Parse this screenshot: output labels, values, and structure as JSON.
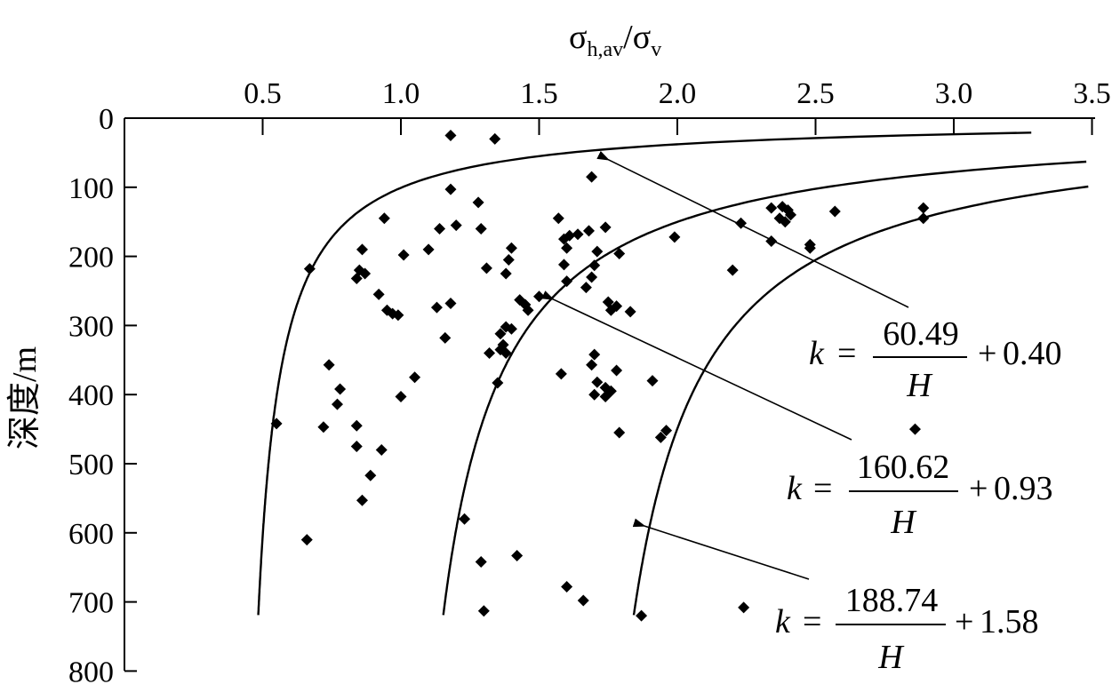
{
  "chart_data": {
    "type": "scatter",
    "xlabel": {
      "main": "σ",
      "sub1": "h,av",
      "slash": "/",
      "main2": "σ",
      "sub2": "v"
    },
    "ylabel": "深度/m",
    "xlim": [
      0,
      3.5
    ],
    "ylim": [
      0,
      800
    ],
    "x_ticks": [
      "0.5",
      "1.0",
      "1.5",
      "2.0",
      "2.5",
      "3.0",
      "3.5"
    ],
    "y_ticks": [
      "0",
      "100",
      "200",
      "300",
      "400",
      "500",
      "600",
      "700",
      "800"
    ],
    "x_axis_position": "top",
    "y_axis_inverted": true,
    "grid": false,
    "marker": "diamond",
    "color": "#000000",
    "points": [
      [
        1.18,
        25
      ],
      [
        1.34,
        30
      ],
      [
        1.69,
        85
      ],
      [
        1.18,
        103
      ],
      [
        1.28,
        122
      ],
      [
        0.94,
        145
      ],
      [
        1.57,
        145
      ],
      [
        1.2,
        155
      ],
      [
        1.14,
        160
      ],
      [
        1.29,
        160
      ],
      [
        1.74,
        158
      ],
      [
        1.68,
        163
      ],
      [
        1.64,
        168
      ],
      [
        1.61,
        170
      ],
      [
        1.59,
        175
      ],
      [
        1.1,
        190
      ],
      [
        1.01,
        198
      ],
      [
        0.86,
        190
      ],
      [
        1.4,
        188
      ],
      [
        1.6,
        188
      ],
      [
        1.71,
        193
      ],
      [
        1.79,
        196
      ],
      [
        1.39,
        205
      ],
      [
        1.59,
        212
      ],
      [
        1.7,
        213
      ],
      [
        1.31,
        217
      ],
      [
        0.67,
        218
      ],
      [
        0.85,
        220
      ],
      [
        0.87,
        225
      ],
      [
        0.84,
        232
      ],
      [
        1.38,
        225
      ],
      [
        1.69,
        230
      ],
      [
        1.6,
        236
      ],
      [
        1.67,
        245
      ],
      [
        0.92,
        255
      ],
      [
        1.5,
        258
      ],
      [
        1.43,
        263
      ],
      [
        1.45,
        270
      ],
      [
        1.18,
        268
      ],
      [
        1.13,
        274
      ],
      [
        1.46,
        278
      ],
      [
        1.75,
        266
      ],
      [
        1.78,
        272
      ],
      [
        1.76,
        278
      ],
      [
        1.83,
        280
      ],
      [
        0.95,
        278
      ],
      [
        0.97,
        283
      ],
      [
        0.99,
        285
      ],
      [
        1.38,
        302
      ],
      [
        1.4,
        305
      ],
      [
        1.36,
        312
      ],
      [
        1.16,
        318
      ],
      [
        1.37,
        328
      ],
      [
        1.36,
        335
      ],
      [
        1.32,
        340
      ],
      [
        1.38,
        340
      ],
      [
        1.7,
        342
      ],
      [
        1.69,
        357
      ],
      [
        0.74,
        357
      ],
      [
        1.78,
        365
      ],
      [
        1.58,
        370
      ],
      [
        1.05,
        375
      ],
      [
        1.71,
        382
      ],
      [
        1.35,
        383
      ],
      [
        1.91,
        380
      ],
      [
        1.74,
        390
      ],
      [
        1.76,
        395
      ],
      [
        1.7,
        400
      ],
      [
        0.78,
        392
      ],
      [
        1.74,
        403
      ],
      [
        1.0,
        403
      ],
      [
        0.77,
        414
      ],
      [
        0.72,
        447
      ],
      [
        0.84,
        445
      ],
      [
        1.79,
        455
      ],
      [
        1.96,
        452
      ],
      [
        1.94,
        462
      ],
      [
        0.84,
        475
      ],
      [
        0.93,
        480
      ],
      [
        0.89,
        517
      ],
      [
        0.86,
        553
      ],
      [
        1.23,
        580
      ],
      [
        0.66,
        610
      ],
      [
        1.42,
        633
      ],
      [
        1.29,
        642
      ],
      [
        1.6,
        678
      ],
      [
        1.66,
        698
      ],
      [
        1.3,
        713
      ],
      [
        1.87,
        720
      ],
      [
        2.24,
        708
      ],
      [
        1.99,
        172
      ],
      [
        2.2,
        220
      ],
      [
        2.23,
        152
      ],
      [
        2.34,
        130
      ],
      [
        2.38,
        128
      ],
      [
        2.4,
        133
      ],
      [
        2.41,
        140
      ],
      [
        2.37,
        145
      ],
      [
        2.39,
        150
      ],
      [
        2.34,
        178
      ],
      [
        2.48,
        183
      ],
      [
        2.48,
        188
      ],
      [
        2.57,
        135
      ],
      [
        2.89,
        130
      ],
      [
        2.89,
        145
      ],
      [
        2.86,
        450
      ],
      [
        0.55,
        442
      ]
    ],
    "curves": [
      {
        "a": 60.49,
        "b": 0.4
      },
      {
        "a": 160.62,
        "b": 0.93
      },
      {
        "a": 188.74,
        "b": 1.58
      }
    ],
    "curve_depth_range": [
      15,
      720
    ],
    "annotations": [
      {
        "k": "k",
        "eq": "=",
        "num": "60.49",
        "den": "H",
        "plus": "+",
        "const": "0.40",
        "arrow_to": [
          1.75,
          60
        ]
      },
      {
        "k": "k",
        "eq": "=",
        "num": "160.62",
        "den": "H",
        "plus": "+",
        "const": "0.93",
        "arrow_to": [
          1.55,
          262
        ]
      },
      {
        "k": "k",
        "eq": "=",
        "num": "188.74",
        "den": "H",
        "plus": "+",
        "const": "1.58",
        "arrow_to": [
          1.88,
          590
        ]
      }
    ]
  }
}
